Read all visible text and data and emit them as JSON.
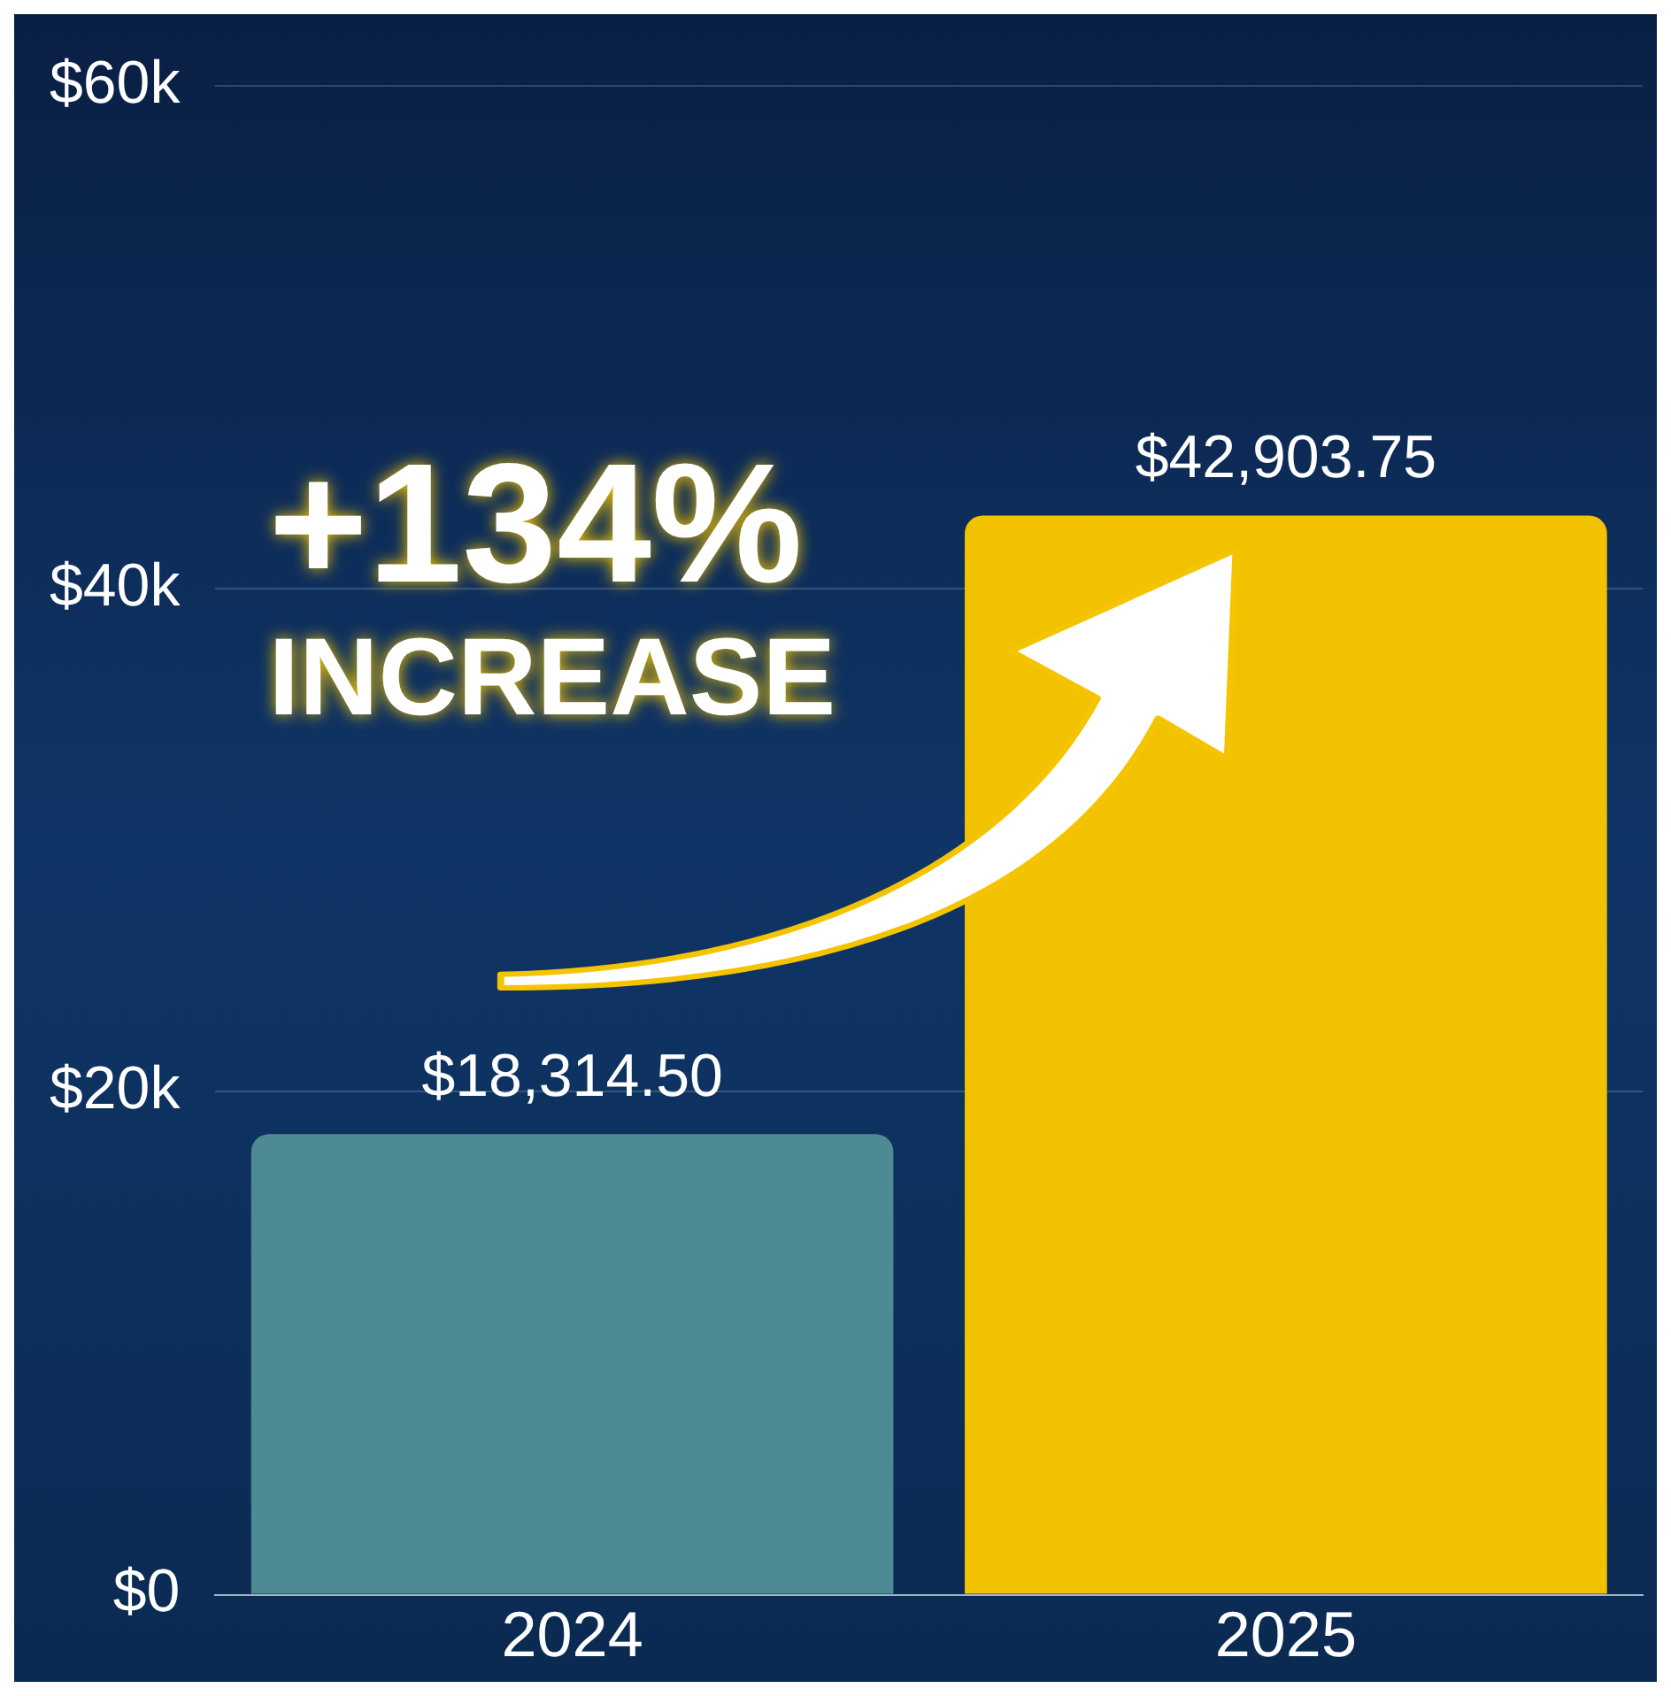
{
  "chart_data": {
    "type": "bar",
    "categories": [
      "2024",
      "2025"
    ],
    "values": [
      18314.5,
      42903.75
    ],
    "colors": [
      "#4e8a93",
      "#f2c200"
    ],
    "value_labels": [
      "$18,314.50",
      "$42,903.75"
    ],
    "ylim": [
      0,
      60000
    ],
    "yticks": [
      {
        "value": 0,
        "label": "$0"
      },
      {
        "value": 20000,
        "label": "$20k"
      },
      {
        "value": 40000,
        "label": "$40k"
      },
      {
        "value": 60000,
        "label": "$60k"
      }
    ],
    "grid": "y",
    "annotations": [
      "+134%",
      "INCREASE"
    ]
  }
}
